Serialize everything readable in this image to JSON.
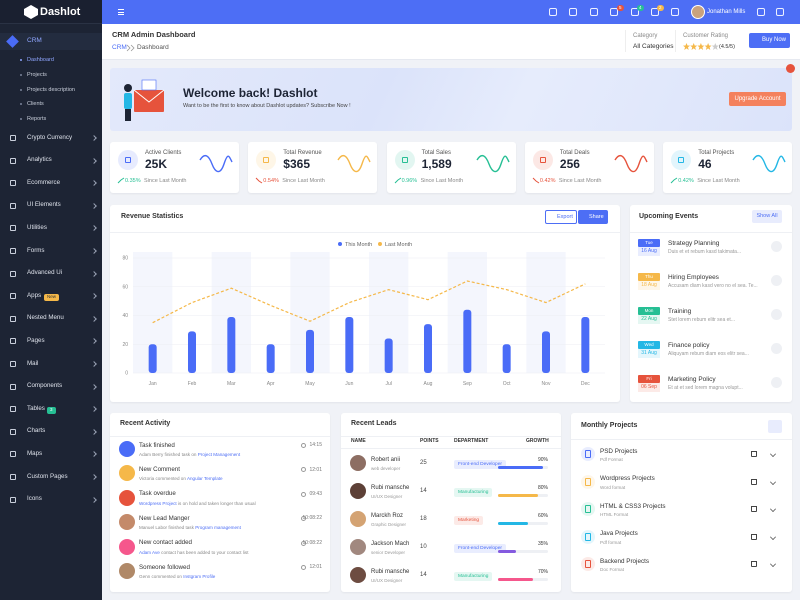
{
  "brand": "Dashlot",
  "sidebar": {
    "group": "CRM",
    "subitems": [
      "Dashboard",
      "Projects",
      "Projects description",
      "Clients",
      "Reports"
    ],
    "items": [
      {
        "label": "Crypto Currency"
      },
      {
        "label": "Analytics"
      },
      {
        "label": "Ecommerce"
      },
      {
        "label": "UI Elements"
      },
      {
        "label": "Utilities"
      },
      {
        "label": "Forms"
      },
      {
        "label": "Advanced Ui"
      },
      {
        "label": "Apps",
        "badge": "New"
      },
      {
        "label": "Nested Menu"
      },
      {
        "label": "Pages"
      },
      {
        "label": "Mail"
      },
      {
        "label": "Components"
      },
      {
        "label": "Tables",
        "badge": "3"
      },
      {
        "label": "Charts"
      },
      {
        "label": "Maps"
      },
      {
        "label": "Custom Pages"
      },
      {
        "label": "Icons"
      }
    ]
  },
  "header": {
    "notification_badges": [
      "5",
      "4",
      "2"
    ],
    "user": "Jonathan Mills"
  },
  "page": {
    "title": "CRM Admin Dashboard",
    "breadcrumb": [
      "CRM",
      "Dashboard"
    ],
    "category_label": "Category",
    "category": "All Categories",
    "rating_label": "Customer Rating",
    "rating": "(4.5/5)",
    "buy": "Buy Now"
  },
  "banner": {
    "title": "Welcome back! Dashlot",
    "text": "Want to be the first to know about Dashlot updates? Subscribe Now !",
    "button": "Upgrade Account"
  },
  "stats": [
    {
      "label": "Active Clients",
      "value": "25K",
      "change": "0.35%",
      "trend": "up",
      "note": "Since Last Month",
      "color": "#4a6cf7"
    },
    {
      "label": "Total Revenue",
      "value": "$365",
      "change": "0.54%",
      "trend": "down",
      "note": "Since Last Month",
      "color": "#f5b849"
    },
    {
      "label": "Total Sales",
      "value": "1,589",
      "change": "0.96%",
      "trend": "up",
      "note": "Since Last Month",
      "color": "#26bf94"
    },
    {
      "label": "Total Deals",
      "value": "256",
      "change": "0.42%",
      "trend": "down",
      "note": "Since Last Month",
      "color": "#e6533c"
    },
    {
      "label": "Total Projects",
      "value": "46",
      "change": "0.42%",
      "trend": "up",
      "note": "Since Last Month",
      "color": "#23b7e5"
    }
  ],
  "revenue_card": {
    "export": "Export",
    "share": "Share"
  },
  "chart_data": {
    "type": "bar",
    "title": "Revenue Statistics",
    "categories": [
      "Jan",
      "Feb",
      "Mar",
      "Apr",
      "May",
      "Jun",
      "Jul",
      "Aug",
      "Sep",
      "Oct",
      "Nov",
      "Dec"
    ],
    "series": [
      {
        "name": "This Month",
        "type": "bar",
        "color": "#4a6cf7",
        "values": [
          20,
          29,
          39,
          20,
          30,
          39,
          24,
          34,
          44,
          20,
          29,
          39
        ]
      },
      {
        "name": "Last Month",
        "type": "line",
        "color": "#f5b849",
        "values": [
          35,
          49,
          59,
          47,
          36,
          49,
          58,
          51,
          64,
          58,
          49,
          62
        ]
      }
    ],
    "ylim": [
      0,
      80
    ],
    "yticks": [
      0,
      20,
      40,
      60,
      80
    ],
    "grid": true,
    "legend": "top"
  },
  "events": {
    "title": "Upcoming Events",
    "show_all": "Show All",
    "items": [
      {
        "day": "Tue",
        "date": "16 Aug",
        "title": "Strategy Planning",
        "text": "Duis et et rebum kasd takimata...",
        "color": "#4a6cf7"
      },
      {
        "day": "Thu",
        "date": "18 Aug",
        "title": "Hiring Employees",
        "text": "Accusam diam kasd vero no el sea. Te...",
        "color": "#f5b849"
      },
      {
        "day": "Mon",
        "date": "22 Aug",
        "title": "Training",
        "text": "Stet lorem rebum elitr sea et...",
        "color": "#26bf94"
      },
      {
        "day": "Wed",
        "date": "31 Aug",
        "title": "Finance policy",
        "text": "Aliquyam rebum diam eos elitr sea...",
        "color": "#23b7e5"
      },
      {
        "day": "Fri",
        "date": "06 Sep",
        "title": "Marketing Policy",
        "text": "Et at et sed lorem magna volupt...",
        "color": "#e6533c"
      }
    ]
  },
  "activity": {
    "title": "Recent Activity",
    "items": [
      {
        "title": "Task finished",
        "time": "14:15",
        "pre": "Adam Berry finished task on",
        "link": "Project Management",
        "color": "#4a6cf7"
      },
      {
        "title": "New Comment",
        "time": "12:01",
        "pre": "Victoria commented on",
        "link": "Angular Template",
        "color": "#f5b849"
      },
      {
        "title": "Task overdue",
        "time": "09:43",
        "link": "Wordpress Project",
        "post": "is on hold and taken longer than usual",
        "color": "#e6533c"
      },
      {
        "title": "New Lead Manger",
        "time": "10:08:22",
        "pre": "Manuel Labor finished task",
        "link": "Program management",
        "color": "#c48a6a"
      },
      {
        "title": "New contact added",
        "time": "10:08:22",
        "link": "Adam Ave",
        "post": "contact has been added to your contact list",
        "color": "#f5578c"
      },
      {
        "title": "Someone followed",
        "time": "12:01",
        "pre": "Genn commented on",
        "link": "Instgram Profile",
        "color": "#b08968"
      }
    ]
  },
  "leads": {
    "title": "Recent Leads",
    "columns": [
      "NAME",
      "POINTS",
      "DEPARTMENT",
      "GROWTH"
    ],
    "rows": [
      {
        "name": "Robert anii",
        "role": "web developer",
        "points": "25",
        "department": "Front-end Developer",
        "growth": 90,
        "growth_label": "90%",
        "color": "#4a6cf7"
      },
      {
        "name": "Rubi mansche",
        "role": "UI/UX Designer",
        "points": "14",
        "department": "Manufacturing",
        "growth": 80,
        "growth_label": "80%",
        "color": "#f5b849"
      },
      {
        "name": "Marckh Roz",
        "role": "Graphic Designer",
        "points": "18",
        "department": "Marketing",
        "growth": 60,
        "growth_label": "60%",
        "color": "#23b7e5"
      },
      {
        "name": "Jackson Mach",
        "role": "senior Developer",
        "points": "10",
        "department": "Front-end Developer",
        "growth": 35,
        "growth_label": "35%",
        "color": "#845adf"
      },
      {
        "name": "Rubi mansche",
        "role": "UI/UX Designer",
        "points": "14",
        "department": "Manufacturing",
        "growth": 70,
        "growth_label": "70%",
        "color": "#f5578c"
      }
    ]
  },
  "monthly": {
    "title": "Monthly Projects",
    "items": [
      {
        "name": "PSD Projects",
        "format": "Pdf Format",
        "color": "#4a6cf7"
      },
      {
        "name": "Wordpress Projects",
        "format": "Word format",
        "color": "#f5b849"
      },
      {
        "name": "HTML & CSS3 Projects",
        "format": "HTML Format",
        "color": "#26bf94"
      },
      {
        "name": "Java Projects",
        "format": "Pdf format",
        "color": "#23b7e5"
      },
      {
        "name": "Backend Projects",
        "format": "Doc Format",
        "color": "#e6533c"
      }
    ]
  }
}
